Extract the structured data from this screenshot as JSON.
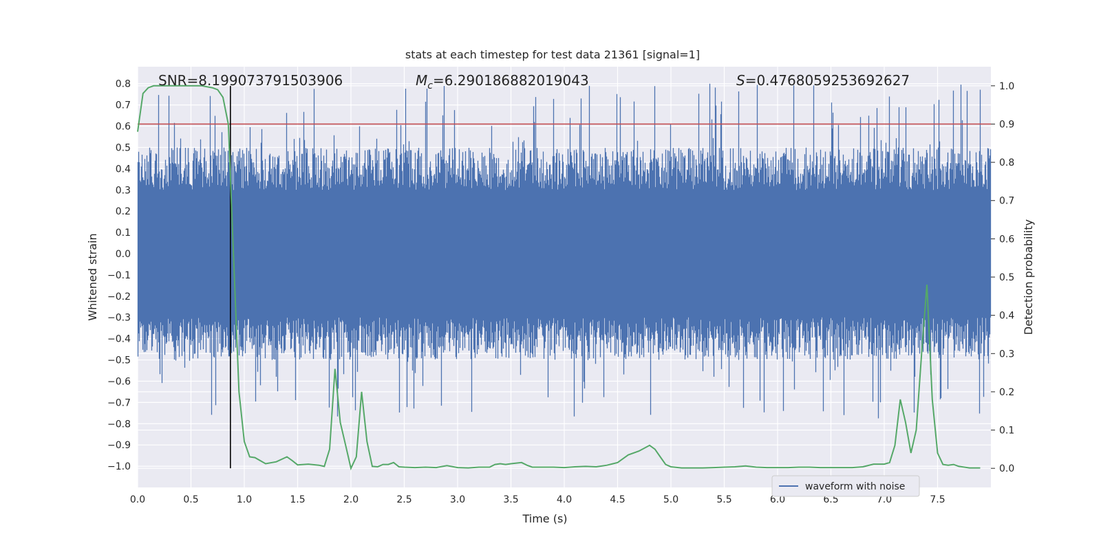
{
  "chart_data": {
    "type": "line",
    "title": "stats at each timestep for test data 21361 [signal=1]",
    "xlabel": "Time (s)",
    "ylabel": "Whitened strain",
    "ylabel_right": "Detection probability",
    "xlim": [
      0.0,
      8.0
    ],
    "ylim": [
      -1.1,
      0.88
    ],
    "ylim_right": [
      -0.05,
      1.05
    ],
    "x_ticks": [
      "0.0",
      "0.5",
      "1.0",
      "1.5",
      "2.0",
      "2.5",
      "3.0",
      "3.5",
      "4.0",
      "4.5",
      "5.0",
      "5.5",
      "6.0",
      "6.5",
      "7.0",
      "7.5"
    ],
    "y_ticks": [
      "0.8",
      "0.7",
      "0.6",
      "0.5",
      "0.4",
      "0.3",
      "0.2",
      "0.1",
      "0.0",
      "-0.1",
      "-0.2",
      "-0.3",
      "-0.4",
      "-0.5",
      "-0.6",
      "-0.7",
      "-0.8",
      "-0.9",
      "-1.0"
    ],
    "y_ticks_right": [
      "1.0",
      "0.9",
      "0.8",
      "0.7",
      "0.6",
      "0.5",
      "0.4",
      "0.3",
      "0.2",
      "0.1",
      "0.0"
    ],
    "grid": true,
    "legend_position": "bottom-right",
    "annotations": {
      "snr": "SNR=8.199073791503906",
      "mc_symbol": "M",
      "mc_sub": "c",
      "mc_value": "=6.290186882019043",
      "s_symbol": "S",
      "s_value": "=0.4768059253692627"
    },
    "threshold_probability": 0.9,
    "vertical_marker_time": 0.87,
    "series": [
      {
        "name": "waveform with noise",
        "axis": "left",
        "color": "#4c72b0",
        "description_noise_band": {
          "core_lower": -0.3,
          "core_upper": 0.3,
          "spike_max": 0.8,
          "spike_min": -0.78
        }
      },
      {
        "axis": "right",
        "color": "#55a868",
        "x": [
          0.0,
          0.05,
          0.1,
          0.15,
          0.2,
          0.25,
          0.3,
          0.4,
          0.5,
          0.6,
          0.7,
          0.75,
          0.8,
          0.85,
          0.9,
          0.95,
          1.0,
          1.05,
          1.1,
          1.2,
          1.3,
          1.4,
          1.45,
          1.5,
          1.6,
          1.7,
          1.75,
          1.8,
          1.85,
          1.9,
          1.95,
          2.0,
          2.05,
          2.1,
          2.15,
          2.2,
          2.25,
          2.3,
          2.35,
          2.4,
          2.45,
          2.5,
          2.6,
          2.7,
          2.8,
          2.9,
          3.0,
          3.1,
          3.2,
          3.3,
          3.35,
          3.4,
          3.45,
          3.5,
          3.6,
          3.65,
          3.7,
          3.8,
          3.9,
          4.0,
          4.1,
          4.2,
          4.3,
          4.4,
          4.5,
          4.6,
          4.7,
          4.8,
          4.85,
          4.9,
          4.95,
          5.0,
          5.1,
          5.2,
          5.3,
          5.4,
          5.5,
          5.6,
          5.7,
          5.8,
          5.9,
          6.0,
          6.1,
          6.2,
          6.3,
          6.4,
          6.5,
          6.6,
          6.7,
          6.8,
          6.9,
          7.0,
          7.05,
          7.1,
          7.15,
          7.2,
          7.25,
          7.3,
          7.35,
          7.4,
          7.45,
          7.5,
          7.55,
          7.6,
          7.65,
          7.7,
          7.8,
          7.9
        ],
        "values": [
          0.88,
          0.98,
          0.995,
          1.0,
          1.0,
          1.0,
          1.0,
          1.0,
          1.0,
          1.0,
          0.995,
          0.99,
          0.97,
          0.9,
          0.55,
          0.2,
          0.07,
          0.03,
          0.028,
          0.012,
          0.017,
          0.03,
          0.02,
          0.009,
          0.011,
          0.008,
          0.005,
          0.05,
          0.26,
          0.12,
          0.06,
          0.0,
          0.03,
          0.2,
          0.07,
          0.005,
          0.004,
          0.01,
          0.01,
          0.015,
          0.004,
          0.003,
          0.002,
          0.003,
          0.002,
          0.007,
          0.002,
          0.001,
          0.003,
          0.003,
          0.01,
          0.012,
          0.01,
          0.012,
          0.015,
          0.008,
          0.003,
          0.003,
          0.003,
          0.002,
          0.004,
          0.005,
          0.004,
          0.008,
          0.015,
          0.035,
          0.045,
          0.06,
          0.05,
          0.03,
          0.01,
          0.004,
          0.001,
          0.001,
          0.001,
          0.002,
          0.003,
          0.004,
          0.006,
          0.003,
          0.002,
          0.002,
          0.002,
          0.003,
          0.003,
          0.002,
          0.002,
          0.002,
          0.002,
          0.004,
          0.011,
          0.011,
          0.015,
          0.06,
          0.18,
          0.12,
          0.04,
          0.1,
          0.3,
          0.48,
          0.18,
          0.04,
          0.01,
          0.008,
          0.01,
          0.005,
          0.001,
          0.001
        ]
      }
    ]
  }
}
